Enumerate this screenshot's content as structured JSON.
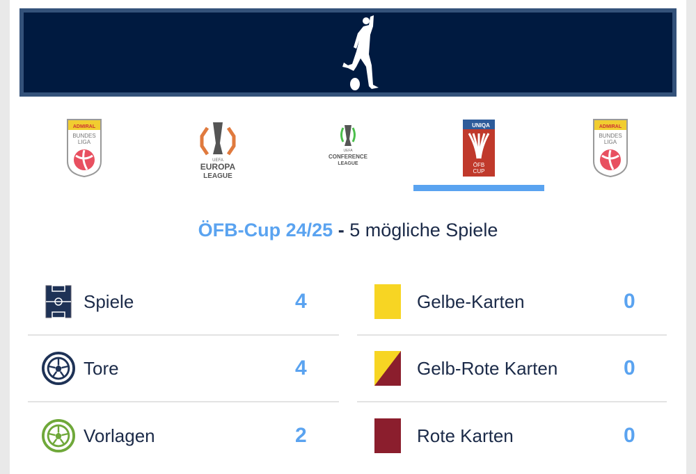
{
  "banner": {
    "icon": "football-player-kicking-icon",
    "bg_color": "#001a40",
    "border_color": "#34527a"
  },
  "competitions": [
    {
      "name": "ADMIRAL Bundesliga",
      "logo_text": [
        "ADMIRAL",
        "BUNDES",
        "LIGA"
      ],
      "active": false
    },
    {
      "name": "UEFA Europa League",
      "logo_text": [
        "UEFA",
        "EUROPA",
        "LEAGUE"
      ],
      "active": false
    },
    {
      "name": "UEFA Conference League",
      "logo_text": [
        "UEFA",
        "CONFERENCE",
        "LEAGUE"
      ],
      "active": false
    },
    {
      "name": "UNIQA ÖFB Cup",
      "logo_text": [
        "UNIQA",
        "ÖFB",
        "CUP"
      ],
      "active": true
    },
    {
      "name": "ADMIRAL Bundesliga",
      "logo_text": [
        "ADMIRAL",
        "BUNDES",
        "LIGA"
      ],
      "active": false
    }
  ],
  "heading": {
    "competition": "ÖFB-Cup 24/25",
    "separator": " - ",
    "subtitle": "5 mögliche Spiele"
  },
  "stats_left": [
    {
      "label": "Spiele",
      "value": "4",
      "icon": "pitch-icon"
    },
    {
      "label": "Tore",
      "value": "4",
      "icon": "ball-icon"
    },
    {
      "label": "Vorlagen",
      "value": "2",
      "icon": "assist-ball-icon"
    }
  ],
  "stats_right": [
    {
      "label": "Gelbe-Karten",
      "value": "0",
      "icon": "yellow-card-icon"
    },
    {
      "label": "Gelb-Rote Karten",
      "value": "0",
      "icon": "yellow-red-card-icon"
    },
    {
      "label": "Rote Karten",
      "value": "0",
      "icon": "red-card-icon"
    }
  ],
  "colors": {
    "accent": "#5aa3f0",
    "text": "#1b2a48",
    "yellow": "#f7d523",
    "red": "#8b1e2d",
    "green": "#6fa83a"
  }
}
